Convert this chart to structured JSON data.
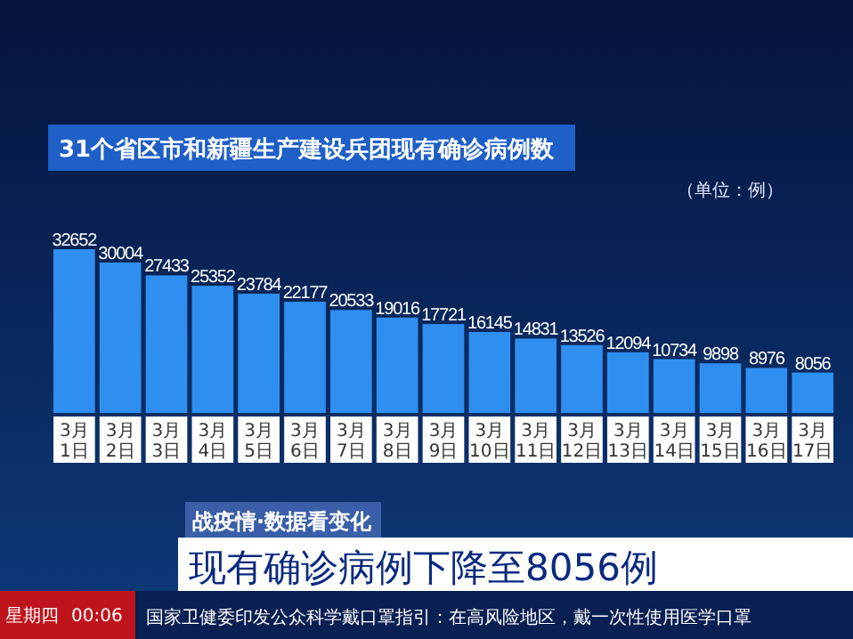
{
  "chart_data": {
    "type": "bar",
    "title": "31个省区市和新疆生产建设兵团现有确诊病例数",
    "categories": [
      "3月1日",
      "3月2日",
      "3月3日",
      "3月4日",
      "3月5日",
      "3月6日",
      "3月7日",
      "3月8日",
      "3月9日",
      "3月10日",
      "3月11日",
      "3月12日",
      "3月13日",
      "3月14日",
      "3月15日",
      "3月16日",
      "3月17日"
    ],
    "values": [
      32652,
      30004,
      27433,
      25352,
      23784,
      22177,
      20533,
      19016,
      17721,
      16145,
      14831,
      13526,
      12094,
      10734,
      9898,
      8976,
      8056
    ],
    "color": "#2f8ff0",
    "data_labels": true,
    "annotations": [
      "（单位：例）",
      "战疫情·数据看变化",
      "现有确诊病例下降至8056例",
      "国家卫健委印发公众科学戴口罩指引：在高风险地区，戴一次性使用医学口罩",
      "星期四",
      "00:06"
    ]
  }
}
